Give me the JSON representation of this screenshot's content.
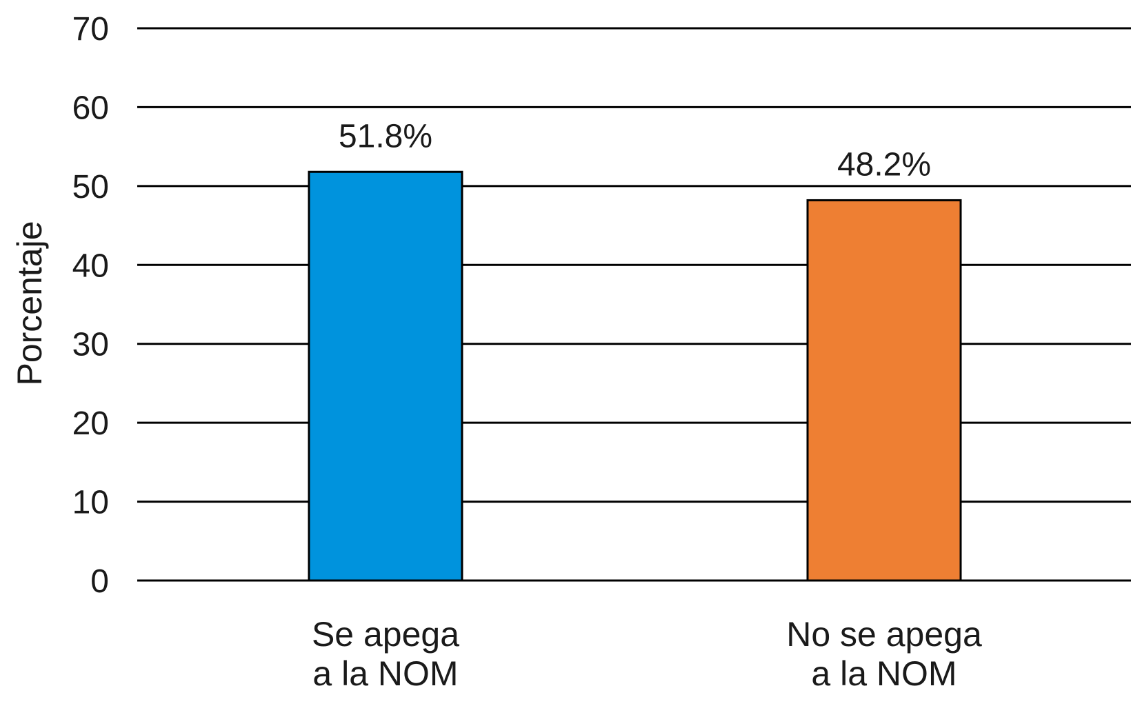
{
  "chart_data": {
    "type": "bar",
    "categories": [
      [
        "Se apega",
        "a la NOM"
      ],
      [
        "No se apega",
        "a la NOM"
      ]
    ],
    "values": [
      51.8,
      48.2
    ],
    "data_labels": [
      "51.8%",
      "48.2%"
    ],
    "colors": [
      "#0093DD",
      "#EE7F33"
    ],
    "title": "",
    "xlabel": "",
    "ylabel": "Porcentaje",
    "ylim": [
      0,
      70
    ],
    "yticks": [
      0,
      10,
      20,
      30,
      40,
      50,
      60,
      70
    ],
    "grid": true,
    "legend": "none"
  }
}
